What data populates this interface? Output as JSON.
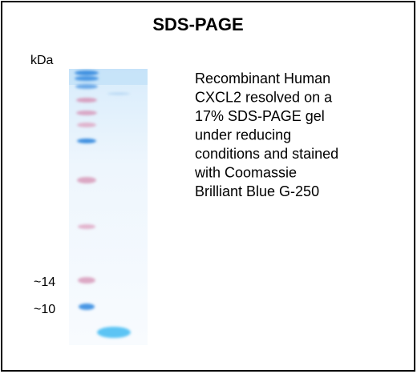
{
  "title": "SDS-PAGE",
  "unit_label": "kDa",
  "markers": [
    "~14",
    "~10"
  ],
  "description": [
    "Recombinant Human",
    "CXCL2 resolved on a",
    "17% SDS-PAGE gel",
    "under reducing",
    "conditions and stained",
    "with Coomassie",
    "Brilliant Blue G-250"
  ]
}
